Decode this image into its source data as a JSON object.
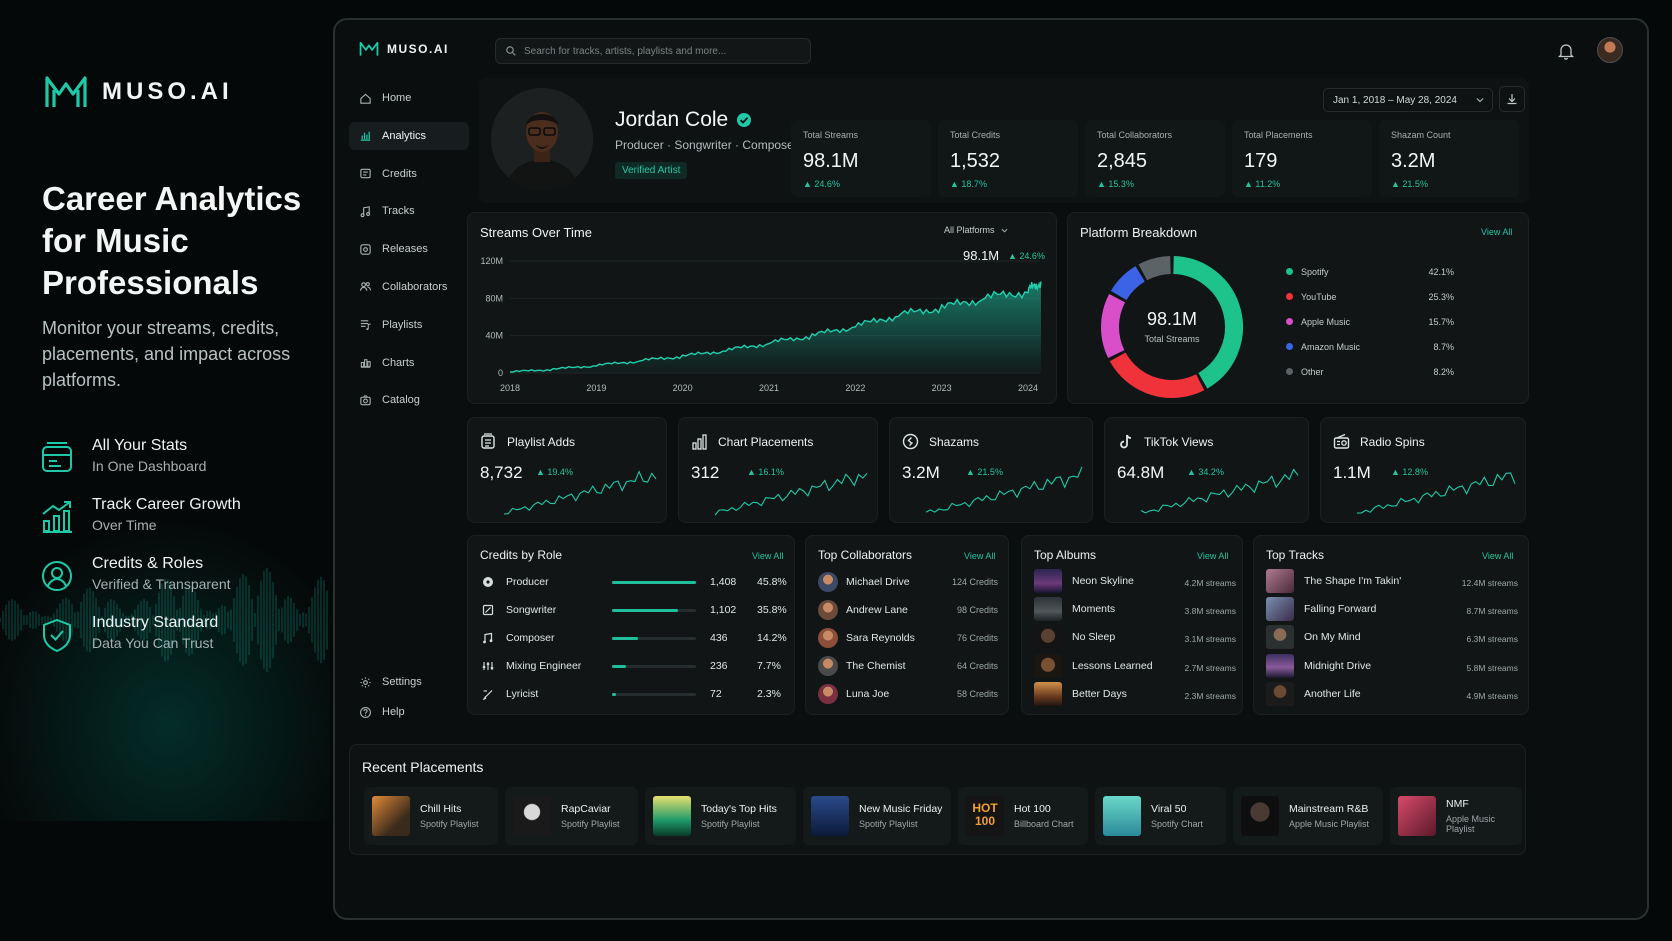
{
  "promo": {
    "brand": "MUSO.AI",
    "headline": "Career Analytics for Music Professionals",
    "subtitle": "Monitor your streams, credits, placements, and impact across platforms.",
    "features": [
      {
        "title": "All Your Stats",
        "sub": "In One Dashboard",
        "icon": "dashboard-icon"
      },
      {
        "title": "Track Career Growth",
        "sub": "Over Time",
        "icon": "growth-chart-icon"
      },
      {
        "title": "Credits & Roles",
        "sub": "Verified & Transparent",
        "icon": "badge-user-icon"
      },
      {
        "title": "Industry Standard",
        "sub": "Data You Can Trust",
        "icon": "shield-check-icon"
      }
    ]
  },
  "app": {
    "logo": "MUSO.AI",
    "search_placeholder": "Search for tracks, artists, playlists and more...",
    "date_range": "Jan 1, 2018 – May 28, 2024"
  },
  "sidebar": {
    "items": [
      {
        "label": "Home",
        "icon": "home-icon"
      },
      {
        "label": "Analytics",
        "icon": "bar-chart-icon",
        "active": true
      },
      {
        "label": "Credits",
        "icon": "credits-icon"
      },
      {
        "label": "Tracks",
        "icon": "music-note-icon"
      },
      {
        "label": "Releases",
        "icon": "release-icon"
      },
      {
        "label": "Collaborators",
        "icon": "users-icon"
      },
      {
        "label": "Playlists",
        "icon": "playlist-icon"
      },
      {
        "label": "Charts",
        "icon": "charts-icon"
      },
      {
        "label": "Catalog",
        "icon": "catalog-icon"
      }
    ],
    "bottom": [
      {
        "label": "Settings",
        "icon": "gear-icon"
      },
      {
        "label": "Help",
        "icon": "help-icon"
      }
    ]
  },
  "profile": {
    "name": "Jordan Cole",
    "roles": "Producer · Songwriter · Composer",
    "badge": "Verified Artist"
  },
  "stats": [
    {
      "label": "Total Streams",
      "value": "98.1M",
      "change": "24.6%"
    },
    {
      "label": "Total Credits",
      "value": "1,532",
      "change": "18.7%"
    },
    {
      "label": "Total Collaborators",
      "value": "2,845",
      "change": "15.3%"
    },
    {
      "label": "Total Placements",
      "value": "179",
      "change": "11.2%"
    },
    {
      "label": "Shazam Count",
      "value": "3.2M",
      "change": "21.5%"
    }
  ],
  "streams_panel": {
    "title": "Streams Over Time",
    "filter": "All Platforms",
    "current_value": "98.1M",
    "current_change": "24.6%"
  },
  "chart_data": [
    {
      "type": "area",
      "title": "Streams Over Time",
      "y_ticks": [
        "0",
        "40M",
        "80M",
        "120M"
      ],
      "x_ticks": [
        "2018",
        "2019",
        "2020",
        "2021",
        "2022",
        "2023",
        "2024"
      ],
      "ylim": [
        0,
        120
      ],
      "y_unit": "M",
      "x": [
        2018.0,
        2018.5,
        2019.0,
        2019.5,
        2020.0,
        2020.5,
        2021.0,
        2021.5,
        2022.0,
        2022.5,
        2023.0,
        2023.5,
        2024.0,
        2024.15
      ],
      "values": [
        1,
        4,
        8,
        13,
        18,
        24,
        32,
        40,
        50,
        62,
        70,
        80,
        88,
        98
      ]
    },
    {
      "type": "pie",
      "title": "Platform Breakdown",
      "center_value": "98.1M",
      "center_label": "Total Streams",
      "categories": [
        "Spotify",
        "YouTube",
        "Apple Music",
        "Amazon Music",
        "Other"
      ],
      "values": [
        42.1,
        25.3,
        15.7,
        8.7,
        8.2
      ],
      "labels": [
        "42.1%",
        "25.3%",
        "15.7%",
        "8.7%",
        "8.2%"
      ],
      "colors": [
        "#1ec28b",
        "#f0333b",
        "#d84fc9",
        "#3c63e6",
        "#5b6366"
      ]
    }
  ],
  "platform_panel": {
    "title": "Platform Breakdown",
    "view_all": "View All"
  },
  "metrics": [
    {
      "label": "Playlist Adds",
      "value": "8,732",
      "change": "19.4%",
      "icon": "playlist-add-icon"
    },
    {
      "label": "Chart Placements",
      "value": "312",
      "change": "16.1%",
      "icon": "bar-chart-icon"
    },
    {
      "label": "Shazams",
      "value": "3.2M",
      "change": "21.5%",
      "icon": "shazam-icon"
    },
    {
      "label": "TikTok Views",
      "value": "64.8M",
      "change": "34.2%",
      "icon": "tiktok-icon"
    },
    {
      "label": "Radio Spins",
      "value": "1.1M",
      "change": "12.8%",
      "icon": "radio-icon"
    }
  ],
  "credits_by_role": {
    "title": "Credits by Role",
    "view_all": "View All",
    "rows": [
      {
        "role": "Producer",
        "count": "1,408",
        "pct": "45.8%",
        "share": 45.8,
        "icon": "producer-icon"
      },
      {
        "role": "Songwriter",
        "count": "1,102",
        "pct": "35.8%",
        "share": 35.8,
        "icon": "songwriter-icon"
      },
      {
        "role": "Composer",
        "count": "436",
        "pct": "14.2%",
        "share": 14.2,
        "icon": "composer-icon"
      },
      {
        "role": "Mixing Engineer",
        "count": "236",
        "pct": "7.7%",
        "share": 7.7,
        "icon": "mixing-icon"
      },
      {
        "role": "Lyricist",
        "count": "72",
        "pct": "2.3%",
        "share": 2.3,
        "icon": "lyricist-icon"
      }
    ]
  },
  "top_collaborators": {
    "title": "Top Collaborators",
    "view_all": "View All",
    "rows": [
      {
        "name": "Michael Drive",
        "credits": "124 Credits"
      },
      {
        "name": "Andrew Lane",
        "credits": "98 Credits"
      },
      {
        "name": "Sara Reynolds",
        "credits": "76 Credits"
      },
      {
        "name": "The Chemist",
        "credits": "64 Credits"
      },
      {
        "name": "Luna Joe",
        "credits": "58 Credits"
      }
    ]
  },
  "top_albums": {
    "title": "Top Albums",
    "view_all": "View All",
    "rows": [
      {
        "name": "Neon Skyline",
        "streams": "4.2M streams"
      },
      {
        "name": "Moments",
        "streams": "3.8M streams"
      },
      {
        "name": "No Sleep",
        "streams": "3.1M streams"
      },
      {
        "name": "Lessons Learned",
        "streams": "2.7M streams"
      },
      {
        "name": "Better Days",
        "streams": "2.3M streams"
      }
    ]
  },
  "top_tracks": {
    "title": "Top Tracks",
    "view_all": "View All",
    "rows": [
      {
        "name": "The Shape I'm Takin'",
        "streams": "12.4M streams"
      },
      {
        "name": "Falling Forward",
        "streams": "8.7M streams"
      },
      {
        "name": "On My Mind",
        "streams": "6.3M streams"
      },
      {
        "name": "Midnight Drive",
        "streams": "5.8M streams"
      },
      {
        "name": "Another Life",
        "streams": "4.9M streams"
      }
    ]
  },
  "recent_placements": {
    "title": "Recent Placements",
    "items": [
      {
        "name": "Chill Hits",
        "type": "Spotify Playlist"
      },
      {
        "name": "RapCaviar",
        "type": "Spotify Playlist"
      },
      {
        "name": "Today's Top Hits",
        "type": "Spotify Playlist"
      },
      {
        "name": "New Music Friday",
        "type": "Spotify Playlist"
      },
      {
        "name": "Hot 100",
        "type": "Billboard Chart",
        "cover_text": "HOT 100"
      },
      {
        "name": "Viral 50",
        "type": "Spotify Chart"
      },
      {
        "name": "Mainstream R&B",
        "type": "Apple Music Playlist"
      },
      {
        "name": "NMF",
        "type": "Apple Music Playlist"
      }
    ]
  },
  "colors": {
    "accent": "#1fc9a7",
    "background": "#050808",
    "panel": "#111516",
    "up": "#23c49f"
  }
}
